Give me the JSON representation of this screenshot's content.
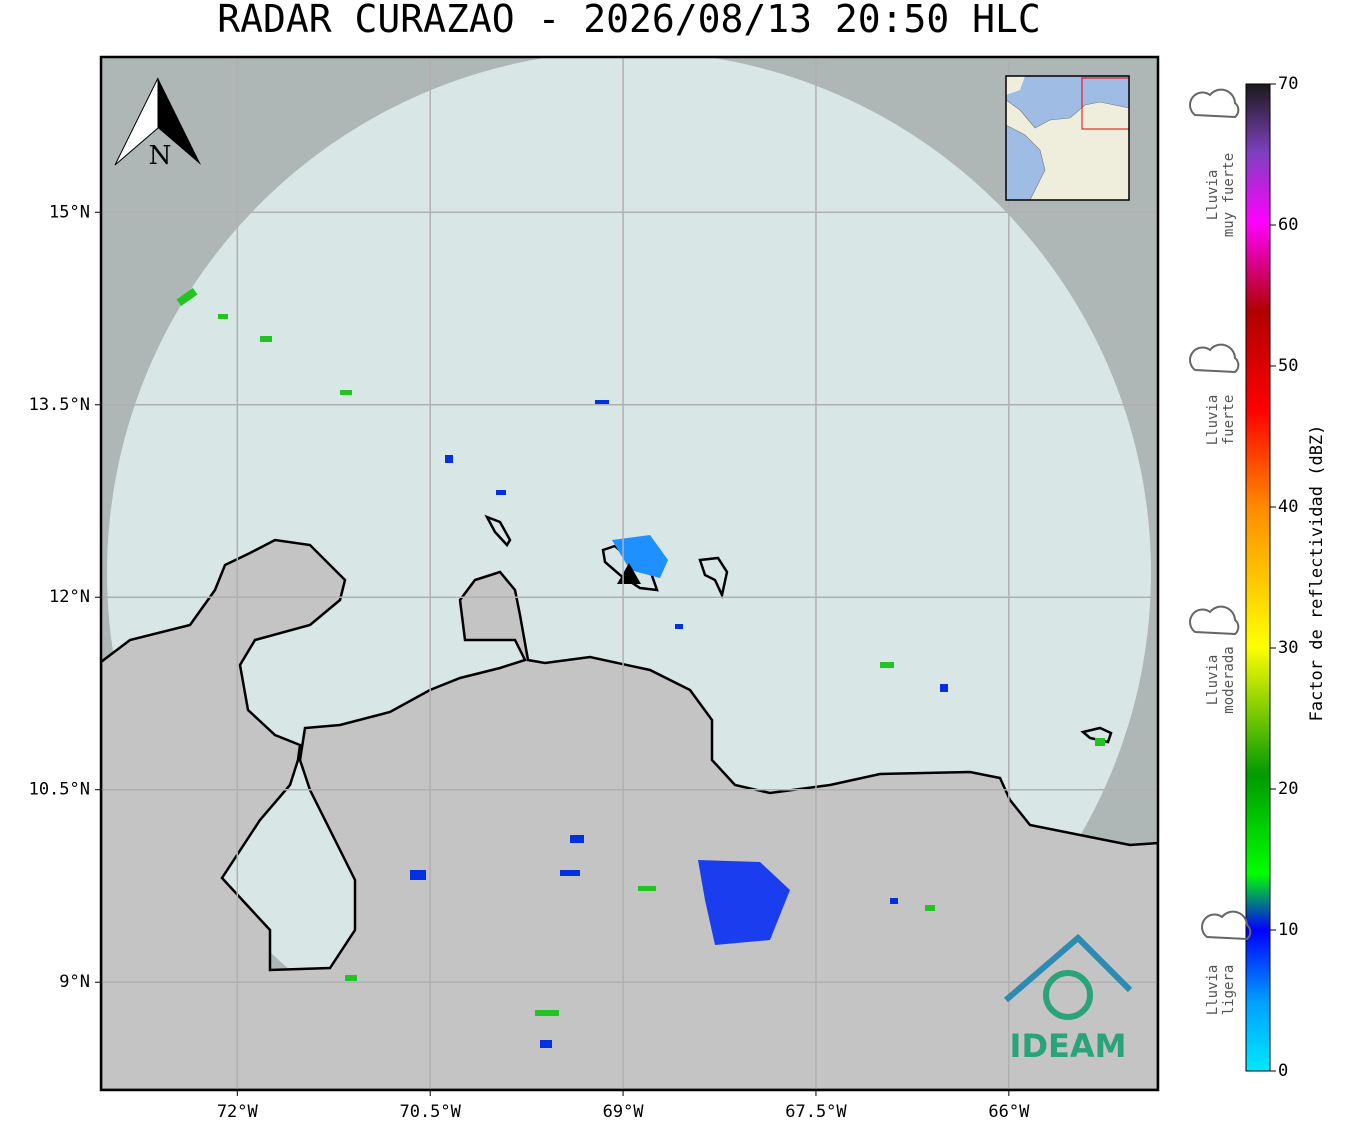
{
  "title": "RADAR CURAZAO - 2026/08/13 20:50 HLC",
  "map": {
    "lonlim": [
      -73.06,
      -64.84
    ],
    "latlim": [
      8.16,
      16.21
    ],
    "lon_ticks": [
      {
        "value": -72,
        "label": "72°W"
      },
      {
        "value": -70.5,
        "label": "70.5°W"
      },
      {
        "value": -69,
        "label": "69°W"
      },
      {
        "value": -67.5,
        "label": "67.5°W"
      },
      {
        "value": -66,
        "label": "66°W"
      }
    ],
    "lat_ticks": [
      {
        "value": 15,
        "label": "15°N"
      },
      {
        "value": 13.5,
        "label": "13.5°N"
      },
      {
        "value": 12,
        "label": "12°N"
      },
      {
        "value": 10.5,
        "label": "10.5°N"
      },
      {
        "value": 9,
        "label": "9°N"
      }
    ],
    "grid": true,
    "north": "N",
    "logo": "IDEAM"
  },
  "colorbar": {
    "label": "Factor de reflectividad (dBZ)",
    "range": [
      0,
      70
    ],
    "ticks": [
      0,
      10,
      20,
      30,
      40,
      50,
      60,
      70
    ],
    "categories": [
      [
        "Lluvia",
        "muy fuerte"
      ],
      [
        "Lluvia",
        "fuerte"
      ],
      [
        "Lluvia",
        "moderada"
      ],
      [
        "Lluvia",
        "ligera"
      ]
    ]
  }
}
